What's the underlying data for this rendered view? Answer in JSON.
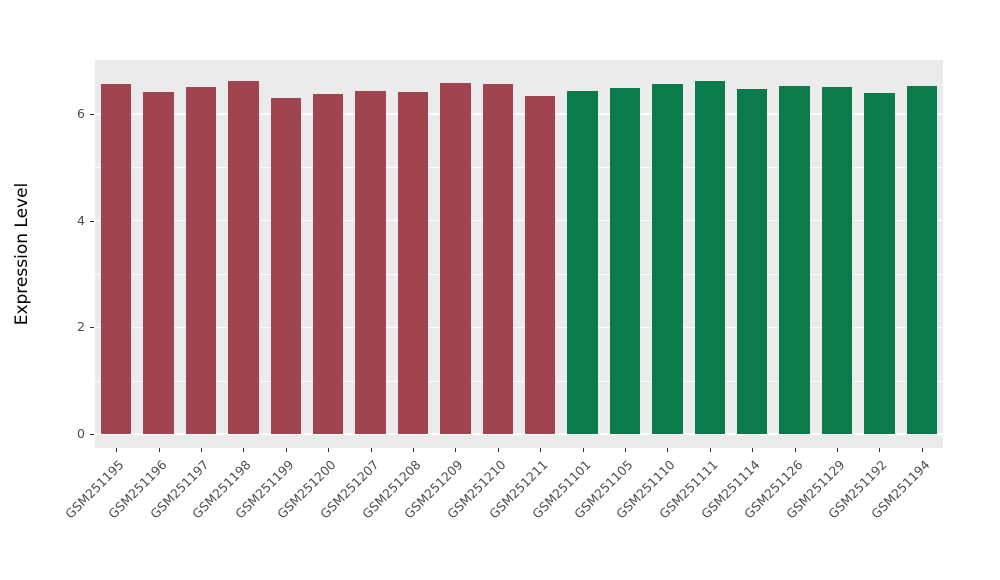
{
  "chart_data": {
    "type": "bar",
    "title": "",
    "xlabel": "",
    "ylabel": "Expression Level",
    "ylim": [
      0,
      6.9
    ],
    "yticks": [
      0,
      2,
      4,
      6
    ],
    "yticks_minor": [
      1,
      3,
      5
    ],
    "grid": "on",
    "legend_position": "none",
    "panel_background": "#ebebeb",
    "grid_color": "#ffffff",
    "group_colors": [
      "#a04550",
      "#0b7b4b"
    ],
    "categories": [
      "GSM251195",
      "GSM251196",
      "GSM251197",
      "GSM251198",
      "GSM251199",
      "GSM251200",
      "GSM251207",
      "GSM251208",
      "GSM251209",
      "GSM251210",
      "GSM251211",
      "GSM251101",
      "GSM251105",
      "GSM251110",
      "GSM251111",
      "GSM251114",
      "GSM251126",
      "GSM251129",
      "GSM251192",
      "GSM251194"
    ],
    "values": [
      6.57,
      6.42,
      6.5,
      6.61,
      6.3,
      6.37,
      6.44,
      6.41,
      6.59,
      6.57,
      6.33,
      6.44,
      6.48,
      6.57,
      6.62,
      6.46,
      6.53,
      6.5,
      6.39,
      6.52
    ],
    "bar_groups": [
      0,
      0,
      0,
      0,
      0,
      0,
      0,
      0,
      0,
      0,
      0,
      1,
      1,
      1,
      1,
      1,
      1,
      1,
      1,
      1
    ]
  }
}
